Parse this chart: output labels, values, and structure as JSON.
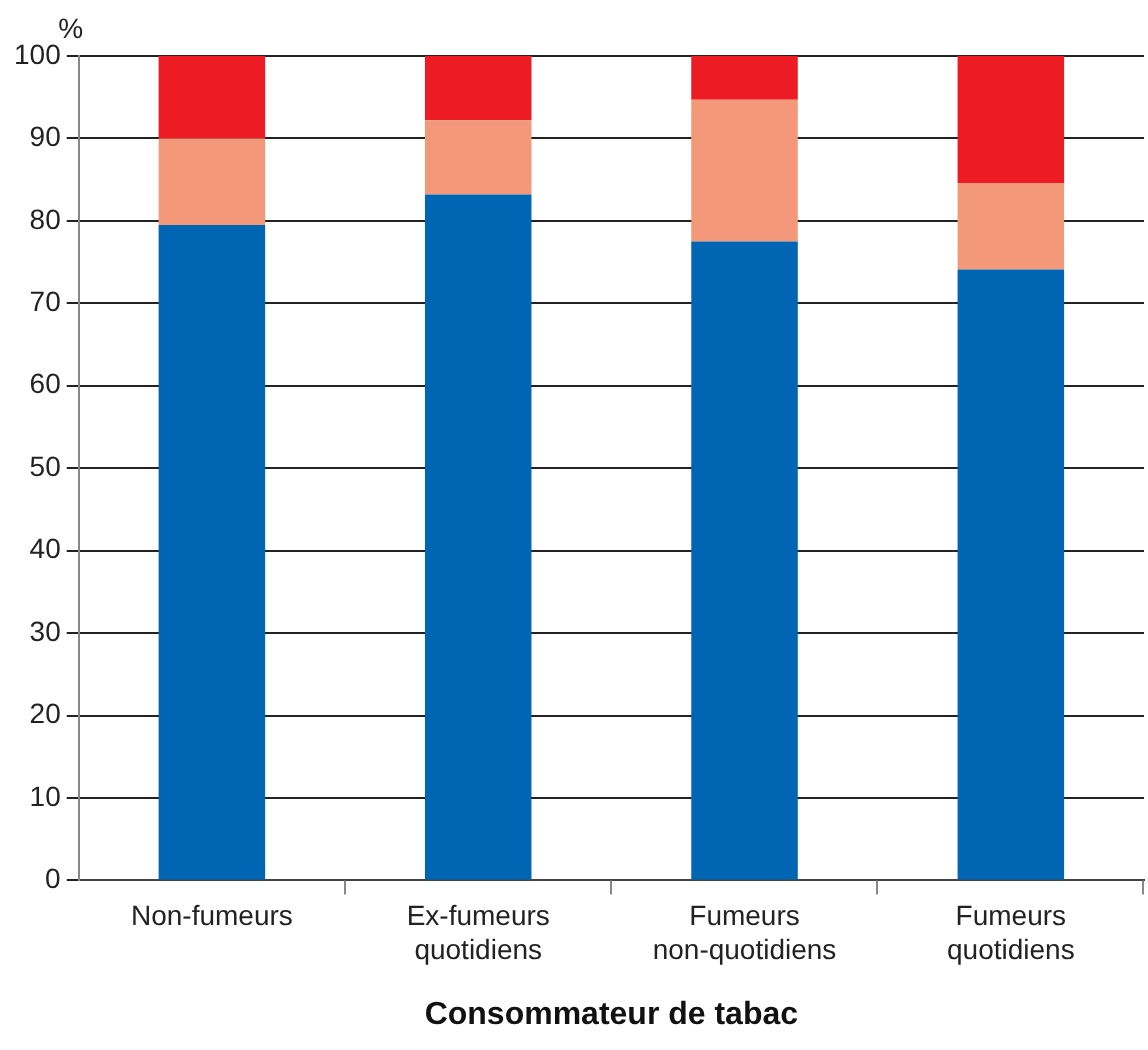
{
  "chart_data": {
    "type": "bar",
    "stacked": true,
    "ylabel": "%",
    "xlabel": "Consommateur de tabac",
    "categories": [
      "Non-fumeurs",
      "Ex-fumeurs quotidiens",
      "Fumeurs non-quotidiens",
      "Fumeurs quotidiens"
    ],
    "series": [
      {
        "color": "#0066b3",
        "values": [
          79.5,
          83.2,
          77.5,
          74.1
        ]
      },
      {
        "color": "#f4987a",
        "values": [
          10.5,
          9,
          17.2,
          10.5
        ]
      },
      {
        "color": "#ed1c24",
        "values": [
          10,
          7.8,
          5.3,
          15.4
        ]
      }
    ],
    "ylim": [
      0,
      100
    ],
    "yticks": [
      0,
      10,
      20,
      30,
      40,
      50,
      60,
      70,
      80,
      90,
      100
    ],
    "grid": "y",
    "legend": false
  }
}
